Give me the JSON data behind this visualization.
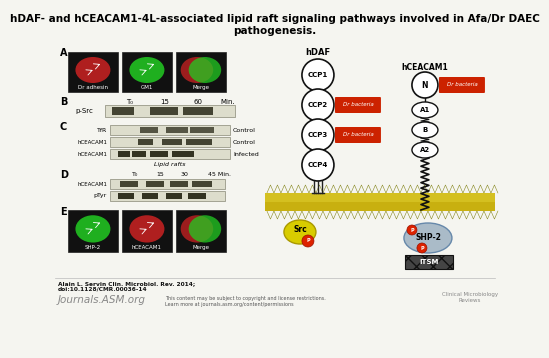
{
  "title": "hDAF- and hCEACAM1-4L-associated lipid raft signaling pathways involved in Afa/Dr DAEC\npathogenesis.",
  "title_fontsize": 7.5,
  "background_color": "#f5f5f0",
  "footer_author": "Alain L. Servin Clin. Microbiol. Rev. 2014;\ndoi:10.1128/CMR.00036-14",
  "footer_journal": "Journals.ASM.org",
  "footer_rights": "This content may be subject to copyright and license restrictions.\nLearn more at journals.asm.org/content/permissions",
  "footer_review": "Clinical Microbiology\nReviews",
  "hDAF_label": "hDAF",
  "hCEACAM1_label": "hCEACAM1",
  "ccp_labels": [
    "CCP1",
    "CCP2",
    "CCP3",
    "CCP4"
  ],
  "bacteria_label": "Dr bacteria",
  "itm_label": "ITSM",
  "shp2_label": "SHP-2",
  "src_label": "Src",
  "circle_fill": "#ffffff",
  "circle_edge": "#111111",
  "bacteria_bg": "#cc2200",
  "membrane_yellow": "#d4c020",
  "membrane_yellow2": "#c8b010"
}
